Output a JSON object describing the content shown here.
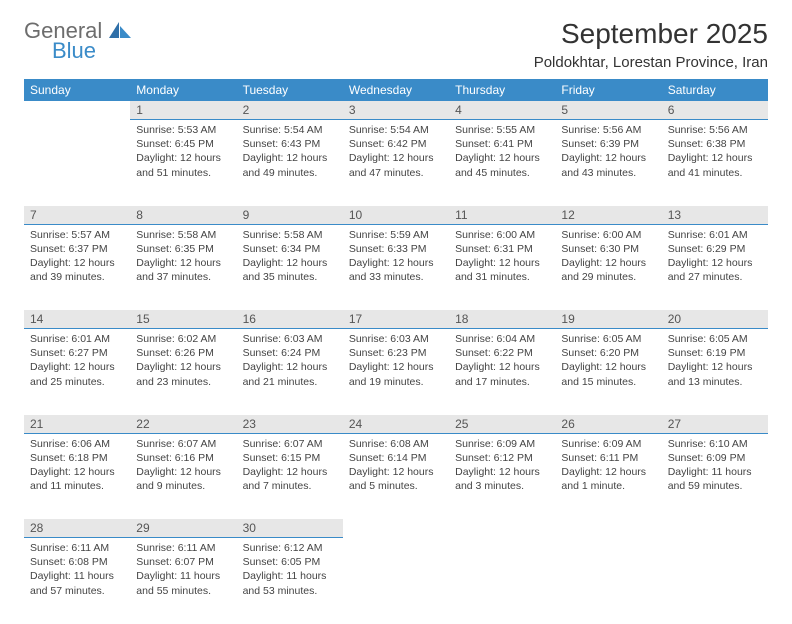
{
  "logo": {
    "general": "General",
    "blue": "Blue"
  },
  "title": "September 2025",
  "location": "Poldokhtar, Lorestan Province, Iran",
  "colors": {
    "header_bg": "#3a8bc8",
    "header_text": "#ffffff",
    "daynum_bg": "#e7e7e7",
    "daynum_border": "#3a8bc8",
    "body_text": "#444444",
    "title_text": "#333333",
    "logo_gray": "#6d6d6d",
    "logo_blue": "#3a8bc8",
    "page_bg": "#ffffff"
  },
  "weekdays": [
    "Sunday",
    "Monday",
    "Tuesday",
    "Wednesday",
    "Thursday",
    "Friday",
    "Saturday"
  ],
  "weeks": [
    [
      null,
      {
        "n": "1",
        "sr": "Sunrise: 5:53 AM",
        "ss": "Sunset: 6:45 PM",
        "dl": "Daylight: 12 hours and 51 minutes."
      },
      {
        "n": "2",
        "sr": "Sunrise: 5:54 AM",
        "ss": "Sunset: 6:43 PM",
        "dl": "Daylight: 12 hours and 49 minutes."
      },
      {
        "n": "3",
        "sr": "Sunrise: 5:54 AM",
        "ss": "Sunset: 6:42 PM",
        "dl": "Daylight: 12 hours and 47 minutes."
      },
      {
        "n": "4",
        "sr": "Sunrise: 5:55 AM",
        "ss": "Sunset: 6:41 PM",
        "dl": "Daylight: 12 hours and 45 minutes."
      },
      {
        "n": "5",
        "sr": "Sunrise: 5:56 AM",
        "ss": "Sunset: 6:39 PM",
        "dl": "Daylight: 12 hours and 43 minutes."
      },
      {
        "n": "6",
        "sr": "Sunrise: 5:56 AM",
        "ss": "Sunset: 6:38 PM",
        "dl": "Daylight: 12 hours and 41 minutes."
      }
    ],
    [
      {
        "n": "7",
        "sr": "Sunrise: 5:57 AM",
        "ss": "Sunset: 6:37 PM",
        "dl": "Daylight: 12 hours and 39 minutes."
      },
      {
        "n": "8",
        "sr": "Sunrise: 5:58 AM",
        "ss": "Sunset: 6:35 PM",
        "dl": "Daylight: 12 hours and 37 minutes."
      },
      {
        "n": "9",
        "sr": "Sunrise: 5:58 AM",
        "ss": "Sunset: 6:34 PM",
        "dl": "Daylight: 12 hours and 35 minutes."
      },
      {
        "n": "10",
        "sr": "Sunrise: 5:59 AM",
        "ss": "Sunset: 6:33 PM",
        "dl": "Daylight: 12 hours and 33 minutes."
      },
      {
        "n": "11",
        "sr": "Sunrise: 6:00 AM",
        "ss": "Sunset: 6:31 PM",
        "dl": "Daylight: 12 hours and 31 minutes."
      },
      {
        "n": "12",
        "sr": "Sunrise: 6:00 AM",
        "ss": "Sunset: 6:30 PM",
        "dl": "Daylight: 12 hours and 29 minutes."
      },
      {
        "n": "13",
        "sr": "Sunrise: 6:01 AM",
        "ss": "Sunset: 6:29 PM",
        "dl": "Daylight: 12 hours and 27 minutes."
      }
    ],
    [
      {
        "n": "14",
        "sr": "Sunrise: 6:01 AM",
        "ss": "Sunset: 6:27 PM",
        "dl": "Daylight: 12 hours and 25 minutes."
      },
      {
        "n": "15",
        "sr": "Sunrise: 6:02 AM",
        "ss": "Sunset: 6:26 PM",
        "dl": "Daylight: 12 hours and 23 minutes."
      },
      {
        "n": "16",
        "sr": "Sunrise: 6:03 AM",
        "ss": "Sunset: 6:24 PM",
        "dl": "Daylight: 12 hours and 21 minutes."
      },
      {
        "n": "17",
        "sr": "Sunrise: 6:03 AM",
        "ss": "Sunset: 6:23 PM",
        "dl": "Daylight: 12 hours and 19 minutes."
      },
      {
        "n": "18",
        "sr": "Sunrise: 6:04 AM",
        "ss": "Sunset: 6:22 PM",
        "dl": "Daylight: 12 hours and 17 minutes."
      },
      {
        "n": "19",
        "sr": "Sunrise: 6:05 AM",
        "ss": "Sunset: 6:20 PM",
        "dl": "Daylight: 12 hours and 15 minutes."
      },
      {
        "n": "20",
        "sr": "Sunrise: 6:05 AM",
        "ss": "Sunset: 6:19 PM",
        "dl": "Daylight: 12 hours and 13 minutes."
      }
    ],
    [
      {
        "n": "21",
        "sr": "Sunrise: 6:06 AM",
        "ss": "Sunset: 6:18 PM",
        "dl": "Daylight: 12 hours and 11 minutes."
      },
      {
        "n": "22",
        "sr": "Sunrise: 6:07 AM",
        "ss": "Sunset: 6:16 PM",
        "dl": "Daylight: 12 hours and 9 minutes."
      },
      {
        "n": "23",
        "sr": "Sunrise: 6:07 AM",
        "ss": "Sunset: 6:15 PM",
        "dl": "Daylight: 12 hours and 7 minutes."
      },
      {
        "n": "24",
        "sr": "Sunrise: 6:08 AM",
        "ss": "Sunset: 6:14 PM",
        "dl": "Daylight: 12 hours and 5 minutes."
      },
      {
        "n": "25",
        "sr": "Sunrise: 6:09 AM",
        "ss": "Sunset: 6:12 PM",
        "dl": "Daylight: 12 hours and 3 minutes."
      },
      {
        "n": "26",
        "sr": "Sunrise: 6:09 AM",
        "ss": "Sunset: 6:11 PM",
        "dl": "Daylight: 12 hours and 1 minute."
      },
      {
        "n": "27",
        "sr": "Sunrise: 6:10 AM",
        "ss": "Sunset: 6:09 PM",
        "dl": "Daylight: 11 hours and 59 minutes."
      }
    ],
    [
      {
        "n": "28",
        "sr": "Sunrise: 6:11 AM",
        "ss": "Sunset: 6:08 PM",
        "dl": "Daylight: 11 hours and 57 minutes."
      },
      {
        "n": "29",
        "sr": "Sunrise: 6:11 AM",
        "ss": "Sunset: 6:07 PM",
        "dl": "Daylight: 11 hours and 55 minutes."
      },
      {
        "n": "30",
        "sr": "Sunrise: 6:12 AM",
        "ss": "Sunset: 6:05 PM",
        "dl": "Daylight: 11 hours and 53 minutes."
      },
      null,
      null,
      null,
      null
    ]
  ]
}
